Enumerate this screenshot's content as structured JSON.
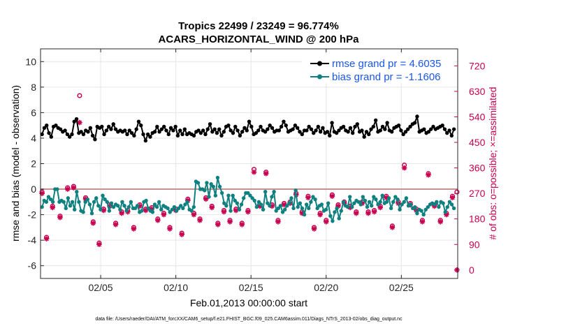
{
  "chart_data": {
    "type": "line",
    "title": "Tropics 22499 / 23249 = 96.774%",
    "subtitle": "ACARS_HORIZONTAL_WIND @ 200 hPa",
    "xlabel": "Feb.01,2013 00:00:00 start",
    "ylabel": "rmse and bias (model - observation)",
    "y2label": "# of obs: o=possible; ×=assimilated",
    "footnote": "data file: /Users/raeder/DAI/ATM_forcXX/CAM6_setup/f.e21.FHIST_BGC.f09_025.CAM6assim.011/Diags_NTrS_2013-02/obs_diag_output.nc",
    "xlim": [
      1,
      28.75
    ],
    "ylim": [
      -7,
      11
    ],
    "y2lim": [
      -30,
      780
    ],
    "xticks": [
      5,
      10,
      15,
      20,
      25
    ],
    "xtick_labels": [
      "02/05",
      "02/10",
      "02/15",
      "02/20",
      "02/25"
    ],
    "yticks": [
      -6,
      -4,
      -2,
      0,
      2,
      4,
      6,
      8,
      10
    ],
    "y2ticks": [
      0,
      90,
      180,
      270,
      360,
      450,
      540,
      630,
      720
    ],
    "grid": true,
    "legend_position": "top-right",
    "colors": {
      "rmse": "#000000",
      "bias": "#0f8080",
      "obs": "#c8004f",
      "zero_line": "#c89090",
      "legend_text": "#1a56e8"
    },
    "series": [
      {
        "name": "rmse grand pr = 4.6035",
        "axis": "left",
        "values": [
          4.3,
          4.8,
          5.0,
          4.4,
          4.1,
          4.9,
          5.0,
          4.8,
          4.7,
          4.5,
          4.6,
          4.3,
          4.1,
          4.3,
          5.3,
          5.5,
          4.4,
          4.5,
          4.3,
          4.6,
          4.5,
          4.8,
          4.2,
          3.9,
          4.9,
          4.8,
          4.9,
          4.3,
          4.6,
          4.9,
          4.7,
          5.1,
          4.7,
          4.5,
          4.6,
          4.5,
          4.6,
          4.3,
          4.6,
          4.4,
          4.2,
          4.7,
          5.3,
          5.0,
          4.3,
          3.8,
          4.3,
          4.1,
          4.4,
          4.5,
          4.9,
          4.5,
          4.7,
          4.9,
          4.6,
          4.3,
          4.8,
          4.6,
          4.9,
          4.2,
          4.6,
          4.3,
          4.7,
          4.3,
          4.4,
          4.3,
          4.2,
          4.5,
          4.6,
          4.4,
          4.6,
          4.3,
          4.7,
          5.1,
          4.5,
          4.7,
          4.4,
          4.7,
          4.2,
          4.5,
          4.9,
          5.0,
          4.6,
          4.4,
          4.9,
          4.6,
          4.2,
          4.5,
          4.8,
          4.6,
          5.3,
          4.9,
          4.3,
          4.4,
          4.6,
          4.9,
          4.6,
          4.5,
          4.7,
          5.0,
          4.8,
          4.5,
          4.6,
          4.6,
          4.9,
          5.3,
          5.0,
          4.5,
          4.6,
          4.7,
          5.0,
          4.8,
          4.5,
          4.3,
          4.6,
          4.6,
          4.9,
          4.7,
          4.4,
          4.6,
          4.9,
          4.5,
          4.8,
          4.4,
          4.5,
          4.2,
          5.2,
          4.5,
          4.4,
          4.6,
          4.8,
          4.9,
          4.6,
          4.5,
          4.8,
          4.4,
          4.9,
          5.1,
          4.5,
          4.6,
          4.1,
          4.5,
          4.3,
          4.7,
          4.9,
          5.4,
          4.5,
          4.6,
          4.9,
          4.7,
          5.2,
          4.6,
          4.5,
          4.8,
          4.9,
          5.0,
          4.6,
          4.3,
          4.5,
          4.7,
          4.9,
          5.1,
          5.2,
          5.7,
          4.5,
          4.6,
          4.7,
          4.4,
          4.5,
          4.7,
          4.9,
          4.7,
          4.8,
          4.9,
          5.0,
          4.7,
          4.4,
          4.6,
          4.2,
          4.7
        ]
      },
      {
        "name": "bias grand pr = -1.1606",
        "axis": "left",
        "values": [
          -1.4,
          -0.9,
          -1.0,
          -0.6,
          -0.8,
          -1.0,
          -0.0,
          -0.0,
          -1.0,
          -0.9,
          -1.0,
          -1.5,
          -0.7,
          -1.3,
          -1.0,
          -1.6,
          -0.2,
          -1.0,
          -1.7,
          -1.8,
          -1.0,
          -0.8,
          -1.2,
          -1.9,
          -1.0,
          -0.7,
          -1.3,
          -1.6,
          -0.5,
          -0.8,
          -1.0,
          -1.7,
          -1.1,
          -1.4,
          -1.2,
          -1.3,
          -1.6,
          -1.0,
          -1.3,
          -1.7,
          -1.4,
          -1.0,
          -1.5,
          -1.5,
          -1.3,
          -1.8,
          -1.7,
          -1.0,
          -0.9,
          -1.5,
          -1.7,
          -1.8,
          -1.2,
          -1.4,
          -1.0,
          -1.6,
          -1.3,
          -1.4,
          -1.5,
          -1.8,
          -1.6,
          -1.4,
          -1.7,
          -1.5,
          -1.3,
          -1.5,
          -1.2,
          -1.0,
          -1.6,
          -1.7,
          -1.4,
          0.6,
          0.5,
          0.0,
          0.0,
          -0.1,
          0.5,
          -0.6,
          0.4,
          0.2,
          -0.5,
          0.9,
          0.2,
          -0.3,
          -1.1,
          -1.3,
          -0.5,
          -1.7,
          -0.5,
          -0.9,
          -1.1,
          -1.6,
          -1.2,
          -0.7,
          -0.3,
          -0.3,
          -0.5,
          -0.7,
          -0.9,
          -1.4,
          -1.0,
          -1.2,
          -1.6,
          -0.2,
          -1.1,
          -1.3,
          -0.6,
          -0.2,
          -1.7,
          -1.5,
          -1.3,
          -1.8,
          -1.6,
          -1.3,
          -1.1,
          -0.7,
          -1.5,
          -0.1,
          -1.4,
          -1.1,
          -1.5,
          -2.0,
          -1.2,
          -1.5,
          -1.0,
          -0.6,
          -0.8,
          -1.5,
          -1.3,
          -1.2,
          -1.7,
          -1.6,
          -1.1,
          -2.1,
          -2.5,
          -1.8,
          -1.5,
          -2.3,
          -1.7,
          -1.0,
          -1.3,
          -1.4,
          -0.6,
          -1.4,
          -1.1,
          -0.9,
          -1.0,
          -1.2,
          -0.6,
          -0.9,
          -1.4,
          -1.0,
          -1.3,
          -0.6,
          -0.8,
          -1.2,
          -1.0,
          -0.5,
          -1.1,
          -1.0,
          -0.7,
          -1.5,
          -1.0,
          -0.6,
          -0.8,
          -1.6,
          -1.2,
          -1.0,
          -0.7,
          -1.3,
          -1.2,
          -1.5,
          -1.4,
          -1.9,
          -1.6,
          -1.7,
          -2.0,
          -1.6,
          -1.4,
          -1.2,
          -1.1,
          -1.2,
          -1.0,
          -1.4,
          -1.0,
          -1.1,
          -1.8,
          -1.4,
          -1.0,
          -1.2,
          -1.5
        ]
      },
      {
        "name": "possible",
        "axis": "right",
        "marker": "circle",
        "x": [
          1.1,
          1.4,
          1.8,
          2.3,
          2.8,
          3.2,
          3.6,
          4.0,
          4.5,
          4.9,
          5.2,
          5.6,
          6.0,
          6.4,
          6.8,
          7.2,
          7.6,
          8.0,
          8.4,
          8.8,
          9.2,
          9.6,
          10.0,
          10.4,
          10.8,
          11.2,
          11.6,
          12.0,
          12.4,
          12.8,
          13.2,
          13.6,
          14.0,
          14.4,
          14.8,
          15.2,
          15.6,
          16.0,
          16.4,
          16.8,
          17.2,
          17.6,
          18.0,
          18.4,
          18.8,
          19.2,
          19.6,
          20.0,
          20.4,
          20.8,
          21.2,
          21.6,
          22.0,
          22.4,
          22.8,
          23.2,
          23.6,
          24.0,
          24.4,
          24.8,
          25.2,
          25.6,
          26.0,
          26.4,
          26.8,
          27.2,
          27.6,
          28.0,
          28.4,
          28.7
        ],
        "values": [
          275,
          115,
          225,
          190,
          290,
          295,
          615,
          255,
          170,
          95,
          215,
          230,
          165,
          205,
          210,
          150,
          230,
          215,
          220,
          180,
          200,
          150,
          215,
          130,
          250,
          200,
          180,
          255,
          225,
          165,
          210,
          175,
          215,
          165,
          210,
          355,
          230,
          345,
          230,
          175,
          235,
          240,
          270,
          205,
          260,
          150,
          200,
          175,
          265,
          230,
          240,
          225,
          205,
          240,
          205,
          210,
          225,
          260,
          155,
          240,
          370,
          235,
          215,
          175,
          340,
          230,
          175,
          200,
          260,
          275
        ]
      },
      {
        "name": "assimilated",
        "axis": "right",
        "marker": "asterisk",
        "x": [
          1.1,
          1.4,
          1.8,
          2.3,
          2.8,
          3.2,
          3.6,
          4.0,
          4.5,
          4.9,
          5.2,
          5.6,
          6.0,
          6.4,
          6.8,
          7.2,
          7.6,
          8.0,
          8.4,
          8.8,
          9.2,
          9.6,
          10.0,
          10.4,
          10.8,
          11.2,
          11.6,
          12.0,
          12.4,
          12.8,
          13.2,
          13.6,
          14.0,
          14.4,
          14.8,
          15.2,
          15.6,
          16.0,
          16.4,
          16.8,
          17.2,
          17.6,
          18.0,
          18.4,
          18.8,
          19.2,
          19.6,
          20.0,
          20.4,
          20.8,
          21.2,
          21.6,
          22.0,
          22.4,
          22.8,
          23.2,
          23.6,
          24.0,
          24.4,
          24.8,
          25.2,
          25.6,
          26.0,
          26.4,
          26.8,
          27.2,
          27.6,
          28.0,
          28.4,
          28.7
        ],
        "values": [
          270,
          110,
          220,
          185,
          285,
          290,
          520,
          250,
          165,
          90,
          210,
          225,
          160,
          200,
          205,
          145,
          225,
          210,
          215,
          175,
          195,
          145,
          210,
          125,
          245,
          195,
          175,
          250,
          220,
          160,
          205,
          170,
          210,
          160,
          205,
          345,
          225,
          340,
          225,
          170,
          230,
          235,
          265,
          200,
          255,
          145,
          195,
          170,
          260,
          225,
          235,
          220,
          200,
          235,
          200,
          205,
          220,
          255,
          150,
          235,
          360,
          230,
          210,
          170,
          335,
          225,
          170,
          195,
          255,
          0
        ]
      }
    ]
  }
}
